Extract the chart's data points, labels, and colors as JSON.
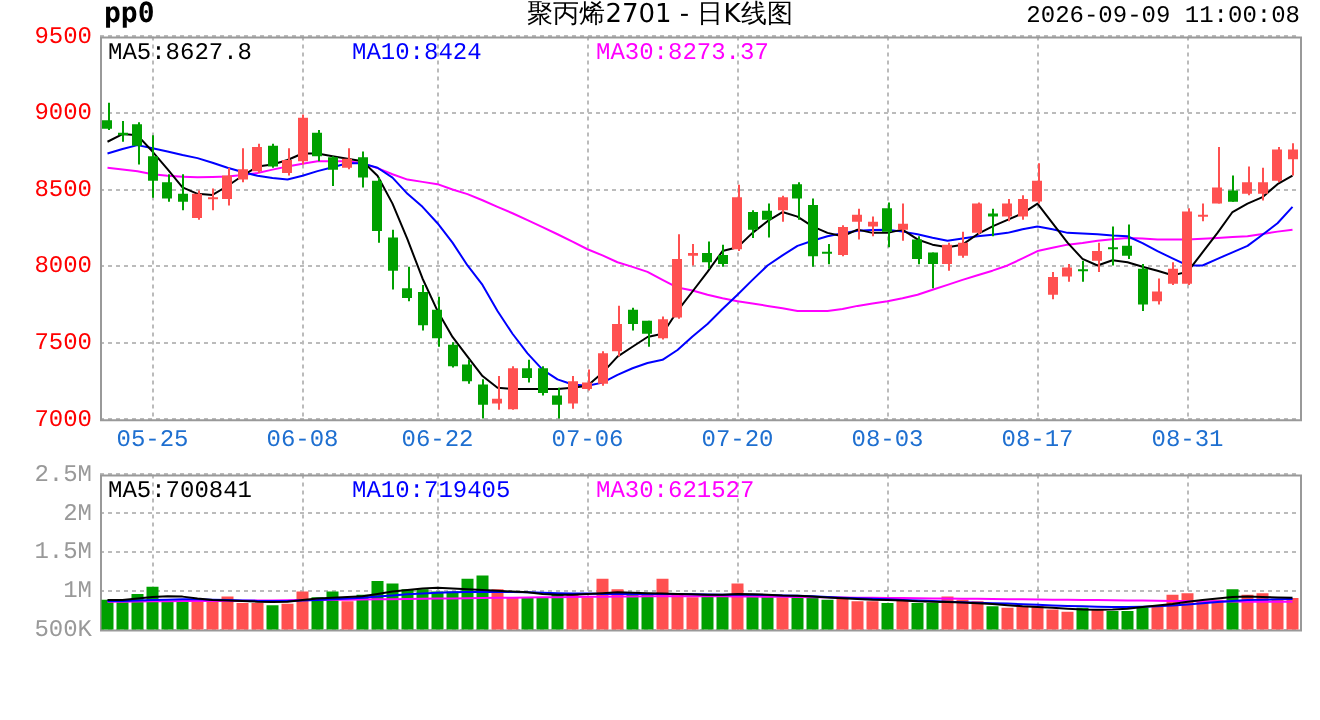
{
  "chart_data": [
    {
      "type": "candlestick",
      "title": "聚丙烯2701 - 日K线图",
      "subtitle": "pp0",
      "annotations": [
        "2026-09-09 11:00:08"
      ],
      "categories": [
        null,
        null,
        null,
        "05-25",
        null,
        null,
        null,
        null,
        null,
        null,
        null,
        null,
        null,
        "06-08",
        null,
        null,
        null,
        null,
        null,
        null,
        null,
        null,
        "06-22",
        null,
        null,
        null,
        null,
        null,
        null,
        null,
        null,
        null,
        "07-06",
        null,
        null,
        null,
        null,
        null,
        null,
        null,
        null,
        null,
        "07-20",
        null,
        null,
        null,
        null,
        null,
        null,
        null,
        null,
        null,
        "08-03",
        null,
        null,
        null,
        null,
        null,
        null,
        null,
        null,
        null,
        "08-17",
        null,
        null,
        null,
        null,
        null,
        null,
        null,
        null,
        null,
        "08-31",
        null,
        null,
        null,
        null,
        null,
        null,
        null
      ],
      "ohlc": [
        [
          8952,
          9066,
          8888,
          8897
        ],
        [
          8871,
          8948,
          8812,
          8854
        ],
        [
          8926,
          8939,
          8663,
          8786
        ],
        [
          8718,
          8854,
          8446,
          8557
        ],
        [
          8548,
          8599,
          8420,
          8442
        ],
        [
          8472,
          8599,
          8365,
          8420
        ],
        [
          8314,
          8493,
          8302,
          8472
        ],
        [
          8440,
          8506,
          8365,
          8450
        ],
        [
          8438,
          8642,
          8395,
          8591
        ],
        [
          8565,
          8769,
          8548,
          8633
        ],
        [
          8620,
          8799,
          8608,
          8778
        ],
        [
          8786,
          8799,
          8642,
          8650
        ],
        [
          8608,
          8769,
          8591,
          8693
        ],
        [
          8684,
          8990,
          8663,
          8969
        ],
        [
          8871,
          8888,
          8684,
          8718
        ],
        [
          8710,
          8718,
          8523,
          8629
        ],
        [
          8642,
          8769,
          8633,
          8701
        ],
        [
          8710,
          8748,
          8514,
          8578
        ],
        [
          8557,
          8578,
          8153,
          8229
        ],
        [
          8187,
          8238,
          7847,
          7970
        ],
        [
          7855,
          7996,
          7770,
          7792
        ],
        [
          7830,
          7877,
          7579,
          7613
        ],
        [
          7715,
          7800,
          7473,
          7528
        ],
        [
          7486,
          7503,
          7337,
          7346
        ],
        [
          7358,
          7388,
          7231,
          7248
        ],
        [
          7227,
          7261,
          7005,
          7095
        ],
        [
          7103,
          7282,
          7061,
          7133
        ],
        [
          7065,
          7346,
          7061,
          7333
        ],
        [
          7333,
          7388,
          7239,
          7269
        ],
        [
          7333,
          7346,
          7154,
          7171
        ],
        [
          7154,
          7205,
          7005,
          7095
        ],
        [
          7103,
          7282,
          7069,
          7248
        ],
        [
          7197,
          7324,
          7188,
          7239
        ],
        [
          7231,
          7443,
          7218,
          7430
        ],
        [
          7443,
          7741,
          7409,
          7622
        ],
        [
          7715,
          7728,
          7579,
          7622
        ],
        [
          7643,
          7643,
          7473,
          7558
        ],
        [
          7528,
          7670,
          7520,
          7652
        ],
        [
          7664,
          8208,
          7656,
          8047
        ],
        [
          8068,
          8144,
          8004,
          8085
        ],
        [
          8085,
          8161,
          7983,
          8025
        ],
        [
          8072,
          8140,
          7996,
          8013
        ],
        [
          8110,
          8531,
          8098,
          8450
        ],
        [
          8353,
          8365,
          8183,
          8238
        ],
        [
          8361,
          8408,
          8187,
          8302
        ],
        [
          8365,
          8459,
          8289,
          8450
        ],
        [
          8535,
          8548,
          8302,
          8442
        ],
        [
          8399,
          8442,
          7996,
          8064
        ],
        [
          8093,
          8144,
          8012,
          8085
        ],
        [
          8072,
          8267,
          8064,
          8255
        ],
        [
          8289,
          8374,
          8174,
          8336
        ],
        [
          8259,
          8323,
          8195,
          8289
        ],
        [
          8378,
          8416,
          8123,
          8225
        ],
        [
          8238,
          8408,
          8165,
          8276
        ],
        [
          8174,
          8195,
          8012,
          8047
        ],
        [
          8089,
          8089,
          7855,
          8013
        ],
        [
          8013,
          8153,
          7970,
          8140
        ],
        [
          8068,
          8225,
          8055,
          8153
        ],
        [
          8217,
          8416,
          8208,
          8408
        ],
        [
          8344,
          8374,
          8195,
          8323
        ],
        [
          8323,
          8438,
          8293,
          8408
        ],
        [
          8323,
          8463,
          8302,
          8438
        ],
        [
          8421,
          8671,
          8408,
          8557
        ],
        [
          7813,
          7962,
          7783,
          7928
        ],
        [
          7932,
          8013,
          7898,
          7991
        ],
        [
          7979,
          8034,
          7898,
          7970
        ],
        [
          8034,
          8153,
          7962,
          8098
        ],
        [
          8123,
          8259,
          8004,
          8115
        ],
        [
          8132,
          8272,
          8047,
          8068
        ],
        [
          7983,
          8013,
          7707,
          7749
        ],
        [
          7770,
          7919,
          7749,
          7834
        ],
        [
          7885,
          8025,
          7877,
          7983
        ],
        [
          7885,
          8378,
          7877,
          8357
        ],
        [
          8323,
          8408,
          8293,
          8336
        ],
        [
          8408,
          8778,
          8408,
          8514
        ],
        [
          8493,
          8591,
          8420,
          8420
        ],
        [
          8472,
          8650,
          8463,
          8548
        ],
        [
          8472,
          8642,
          8429,
          8548
        ],
        [
          8557,
          8778,
          8548,
          8761
        ],
        [
          8697,
          8803,
          8591,
          8761
        ]
      ],
      "colors": [
        "#00a000",
        "#00a000",
        "#00a000",
        "#00a000",
        "#00a000",
        "#00a000",
        "#ff5050",
        "#ff5050",
        "#ff5050",
        "#ff5050",
        "#ff5050",
        "#00a000",
        "#ff5050",
        "#ff5050",
        "#00a000",
        "#00a000",
        "#ff5050",
        "#00a000",
        "#00a000",
        "#00a000",
        "#00a000",
        "#00a000",
        "#00a000",
        "#00a000",
        "#00a000",
        "#00a000",
        "#ff5050",
        "#ff5050",
        "#00a000",
        "#00a000",
        "#00a000",
        "#ff5050",
        "#ff5050",
        "#ff5050",
        "#ff5050",
        "#00a000",
        "#00a000",
        "#ff5050",
        "#ff5050",
        "#ff5050",
        "#00a000",
        "#00a000",
        "#ff5050",
        "#00a000",
        "#00a000",
        "#ff5050",
        "#00a000",
        "#00a000",
        "#00a000",
        "#ff5050",
        "#ff5050",
        "#ff5050",
        "#00a000",
        "#ff5050",
        "#00a000",
        "#00a000",
        "#ff5050",
        "#ff5050",
        "#ff5050",
        "#00a000",
        "#ff5050",
        "#ff5050",
        "#ff5050",
        "#ff5050",
        "#ff5050",
        "#00a000",
        "#ff5050",
        "#00a000",
        "#00a000",
        "#00a000",
        "#ff5050",
        "#ff5050",
        "#ff5050",
        "#ff5050",
        "#ff5050",
        "#00a000",
        "#ff5050",
        "#ff5050",
        "#ff5050",
        "#ff5050"
      ],
      "series": [
        {
          "name": "MA5:8627.8",
          "type": "line",
          "color": "#000000",
          "values": [
            8812,
            8862,
            8854,
            8748,
            8633,
            8514,
            8472,
            8465,
            8523,
            8590,
            8650,
            8663,
            8693,
            8735,
            8735,
            8718,
            8701,
            8684,
            8590,
            8408,
            8174,
            7919,
            7707,
            7537,
            7409,
            7282,
            7205,
            7197,
            7197,
            7197,
            7197,
            7205,
            7218,
            7303,
            7409,
            7473,
            7537,
            7558,
            7707,
            7834,
            7962,
            8098,
            8123,
            8217,
            8293,
            8353,
            8323,
            8259,
            8217,
            8195,
            8238,
            8217,
            8217,
            8238,
            8174,
            8140,
            8123,
            8140,
            8208,
            8259,
            8302,
            8344,
            8408,
            8280,
            8153,
            8047,
            8004,
            8038,
            8025,
            7996,
            7970,
            7940,
            7962,
            8089,
            8217,
            8353,
            8408,
            8450,
            8535,
            8590
          ]
        },
        {
          "name": "MA10:8424",
          "type": "line",
          "color": "#0000ff",
          "values": [
            8735,
            8765,
            8790,
            8770,
            8748,
            8725,
            8705,
            8675,
            8642,
            8615,
            8590,
            8575,
            8565,
            8590,
            8620,
            8645,
            8671,
            8671,
            8642,
            8578,
            8472,
            8387,
            8280,
            8153,
            8004,
            7877,
            7707,
            7558,
            7430,
            7324,
            7260,
            7227,
            7218,
            7239,
            7290,
            7333,
            7367,
            7388,
            7452,
            7540,
            7622,
            7720,
            7813,
            7910,
            8004,
            8070,
            8132,
            8165,
            8195,
            8215,
            8230,
            8235,
            8238,
            8225,
            8208,
            8185,
            8165,
            8180,
            8195,
            8205,
            8217,
            8240,
            8259,
            8240,
            8217,
            8212,
            8208,
            8200,
            8195,
            8150,
            8098,
            8050,
            8004,
            8004,
            8047,
            8090,
            8132,
            8205,
            8280,
            8387
          ]
        },
        {
          "name": "MA30:8273.37",
          "type": "line",
          "color": "#ff00ff",
          "values": [
            8642,
            8630,
            8620,
            8600,
            8590,
            8584,
            8580,
            8582,
            8585,
            8595,
            8608,
            8630,
            8650,
            8668,
            8684,
            8684,
            8684,
            8671,
            8640,
            8600,
            8565,
            8550,
            8535,
            8500,
            8470,
            8430,
            8387,
            8345,
            8300,
            8255,
            8208,
            8160,
            8110,
            8070,
            8025,
            7995,
            7962,
            7910,
            7860,
            7840,
            7813,
            7790,
            7770,
            7755,
            7740,
            7725,
            7707,
            7707,
            7707,
            7720,
            7740,
            7755,
            7770,
            7790,
            7813,
            7845,
            7877,
            7910,
            7940,
            7970,
            8004,
            8050,
            8098,
            8120,
            8140,
            8150,
            8165,
            8175,
            8183,
            8180,
            8174,
            8174,
            8174,
            8178,
            8183,
            8190,
            8195,
            8210,
            8225,
            8238
          ]
        }
      ],
      "ylim": [
        7000,
        9500
      ],
      "yticks": [
        7000,
        7500,
        8000,
        8500,
        9000,
        9500
      ],
      "grid": true,
      "legend": "top left"
    },
    {
      "type": "bar",
      "categories": [
        null,
        null,
        null,
        null,
        null,
        null,
        null,
        null,
        null,
        null,
        null,
        null,
        null,
        null,
        null,
        null,
        null,
        null,
        null,
        null,
        null,
        null,
        null,
        null,
        null,
        null,
        null,
        null,
        null,
        null,
        null,
        null,
        null,
        null,
        null,
        null,
        null,
        null,
        null,
        null,
        null,
        null,
        null,
        null,
        null,
        null,
        null,
        null,
        null,
        null,
        null,
        null,
        null,
        null,
        null,
        null,
        null,
        null,
        null,
        null,
        null,
        null,
        null,
        null,
        null,
        null,
        null,
        null,
        null,
        null,
        null,
        null,
        null,
        null,
        null,
        null,
        null,
        null,
        null,
        null
      ],
      "series": [
        {
          "type": "bar",
          "colors": [
            "#00a000",
            "#00a000",
            "#00a000",
            "#00a000",
            "#00a000",
            "#00a000",
            "#ff5050",
            "#ff5050",
            "#ff5050",
            "#ff5050",
            "#ff5050",
            "#00a000",
            "#ff5050",
            "#ff5050",
            "#00a000",
            "#00a000",
            "#ff5050",
            "#00a000",
            "#00a000",
            "#00a000",
            "#00a000",
            "#00a000",
            "#00a000",
            "#00a000",
            "#00a000",
            "#00a000",
            "#ff5050",
            "#ff5050",
            "#00a000",
            "#00a000",
            "#00a000",
            "#ff5050",
            "#ff5050",
            "#ff5050",
            "#ff5050",
            "#00a000",
            "#00a000",
            "#ff5050",
            "#ff5050",
            "#ff5050",
            "#00a000",
            "#00a000",
            "#ff5050",
            "#00a000",
            "#00a000",
            "#ff5050",
            "#00a000",
            "#00a000",
            "#00a000",
            "#ff5050",
            "#ff5050",
            "#ff5050",
            "#00a000",
            "#ff5050",
            "#00a000",
            "#00a000",
            "#ff5050",
            "#ff5050",
            "#ff5050",
            "#00a000",
            "#ff5050",
            "#ff5050",
            "#ff5050",
            "#ff5050",
            "#ff5050",
            "#00a000",
            "#ff5050",
            "#00a000",
            "#00a000",
            "#00a000",
            "#ff5050",
            "#ff5050",
            "#ff5050",
            "#ff5050",
            "#ff5050",
            "#00a000",
            "#ff5050",
            "#ff5050",
            "#ff5050",
            "#ff5050"
          ],
          "values": [
            885000,
            885000,
            958000,
            1052000,
            865000,
            865000,
            865000,
            865000,
            927000,
            844000,
            844000,
            813000,
            833000,
            990000,
            917000,
            990000,
            865000,
            948000,
            1125000,
            1094000,
            1021000,
            1021000,
            990000,
            990000,
            1156000,
            1198000,
            1021000,
            917000,
            917000,
            917000,
            969000,
            948000,
            917000,
            1156000,
            1021000,
            969000,
            948000,
            1156000,
            969000,
            917000,
            948000,
            948000,
            1094000,
            948000,
            948000,
            917000,
            938000,
            917000,
            885000,
            917000,
            865000,
            865000,
            844000,
            885000,
            844000,
            844000,
            927000,
            885000,
            865000,
            802000,
            781000,
            802000,
            802000,
            760000,
            729000,
            781000,
            760000,
            740000,
            740000,
            781000,
            813000,
            948000,
            969000,
            865000,
            885000,
            1021000,
            948000,
            969000,
            885000,
            906000
          ]
        },
        {
          "name": "MA5:700841",
          "type": "line",
          "color": "#000000",
          "values": [
            880000,
            880000,
            900000,
            920000,
            930000,
            925000,
            900000,
            880000,
            875000,
            870000,
            860000,
            855000,
            860000,
            880000,
            900000,
            910000,
            920000,
            930000,
            960000,
            990000,
            1010000,
            1030000,
            1040000,
            1030000,
            1020000,
            1010000,
            1000000,
            990000,
            980000,
            960000,
            950000,
            950000,
            960000,
            970000,
            980000,
            975000,
            970000,
            965000,
            960000,
            955000,
            950000,
            950000,
            960000,
            955000,
            950000,
            940000,
            935000,
            925000,
            915000,
            905000,
            895000,
            885000,
            880000,
            875000,
            865000,
            860000,
            855000,
            850000,
            840000,
            830000,
            815000,
            800000,
            790000,
            780000,
            770000,
            760000,
            755000,
            760000,
            770000,
            790000,
            810000,
            830000,
            860000,
            880000,
            900000,
            920000,
            925000,
            920000,
            915000,
            910000
          ]
        },
        {
          "name": "MA10:719405",
          "type": "line",
          "color": "#0000ff",
          "values": [
            870000,
            870000,
            875000,
            880000,
            885000,
            890000,
            890000,
            885000,
            880000,
            875000,
            870000,
            870000,
            870000,
            875000,
            880000,
            890000,
            900000,
            910000,
            925000,
            940000,
            955000,
            965000,
            975000,
            980000,
            985000,
            985000,
            985000,
            985000,
            980000,
            975000,
            970000,
            965000,
            965000,
            960000,
            960000,
            960000,
            960000,
            960000,
            958000,
            955000,
            952000,
            950000,
            950000,
            948000,
            945000,
            940000,
            935000,
            930000,
            920000,
            912000,
            905000,
            898000,
            890000,
            882000,
            875000,
            868000,
            860000,
            852000,
            845000,
            840000,
            835000,
            828000,
            820000,
            812000,
            805000,
            800000,
            795000,
            792000,
            790000,
            795000,
            800000,
            810000,
            825000,
            840000,
            855000,
            870000,
            880000,
            885000,
            890000,
            895000
          ]
        },
        {
          "name": "MA30:621527",
          "type": "line",
          "color": "#ff00ff",
          "values": [
            860000,
            860000,
            862000,
            864000,
            866000,
            868000,
            870000,
            870000,
            870000,
            872000,
            874000,
            876000,
            878000,
            880000,
            882000,
            884000,
            886000,
            888000,
            890000,
            892000,
            895000,
            898000,
            900000,
            902000,
            905000,
            908000,
            910000,
            912000,
            914000,
            916000,
            918000,
            920000,
            922000,
            924000,
            926000,
            928000,
            930000,
            930000,
            930000,
            930000,
            930000,
            930000,
            928000,
            926000,
            924000,
            922000,
            920000,
            918000,
            916000,
            914000,
            912000,
            910000,
            908000,
            906000,
            904000,
            902000,
            900000,
            898000,
            896000,
            894000,
            892000,
            890000,
            888000,
            886000,
            884000,
            882000,
            880000,
            878000,
            876000,
            874000,
            872000,
            870000,
            868000,
            866000,
            864000,
            862000,
            860000,
            858000,
            858000,
            858000
          ]
        }
      ],
      "ylim": [
        500000,
        2500000
      ],
      "yticks": [
        {
          "value": 500000,
          "label": "500K"
        },
        {
          "value": 1000000,
          "label": "1M"
        },
        {
          "value": 1500000,
          "label": "1.5M"
        },
        {
          "value": 2000000,
          "label": "2M"
        },
        {
          "value": 2500000,
          "label": "2.5M"
        }
      ],
      "grid": true,
      "legend": "top left",
      "tick_labels": "y"
    }
  ]
}
